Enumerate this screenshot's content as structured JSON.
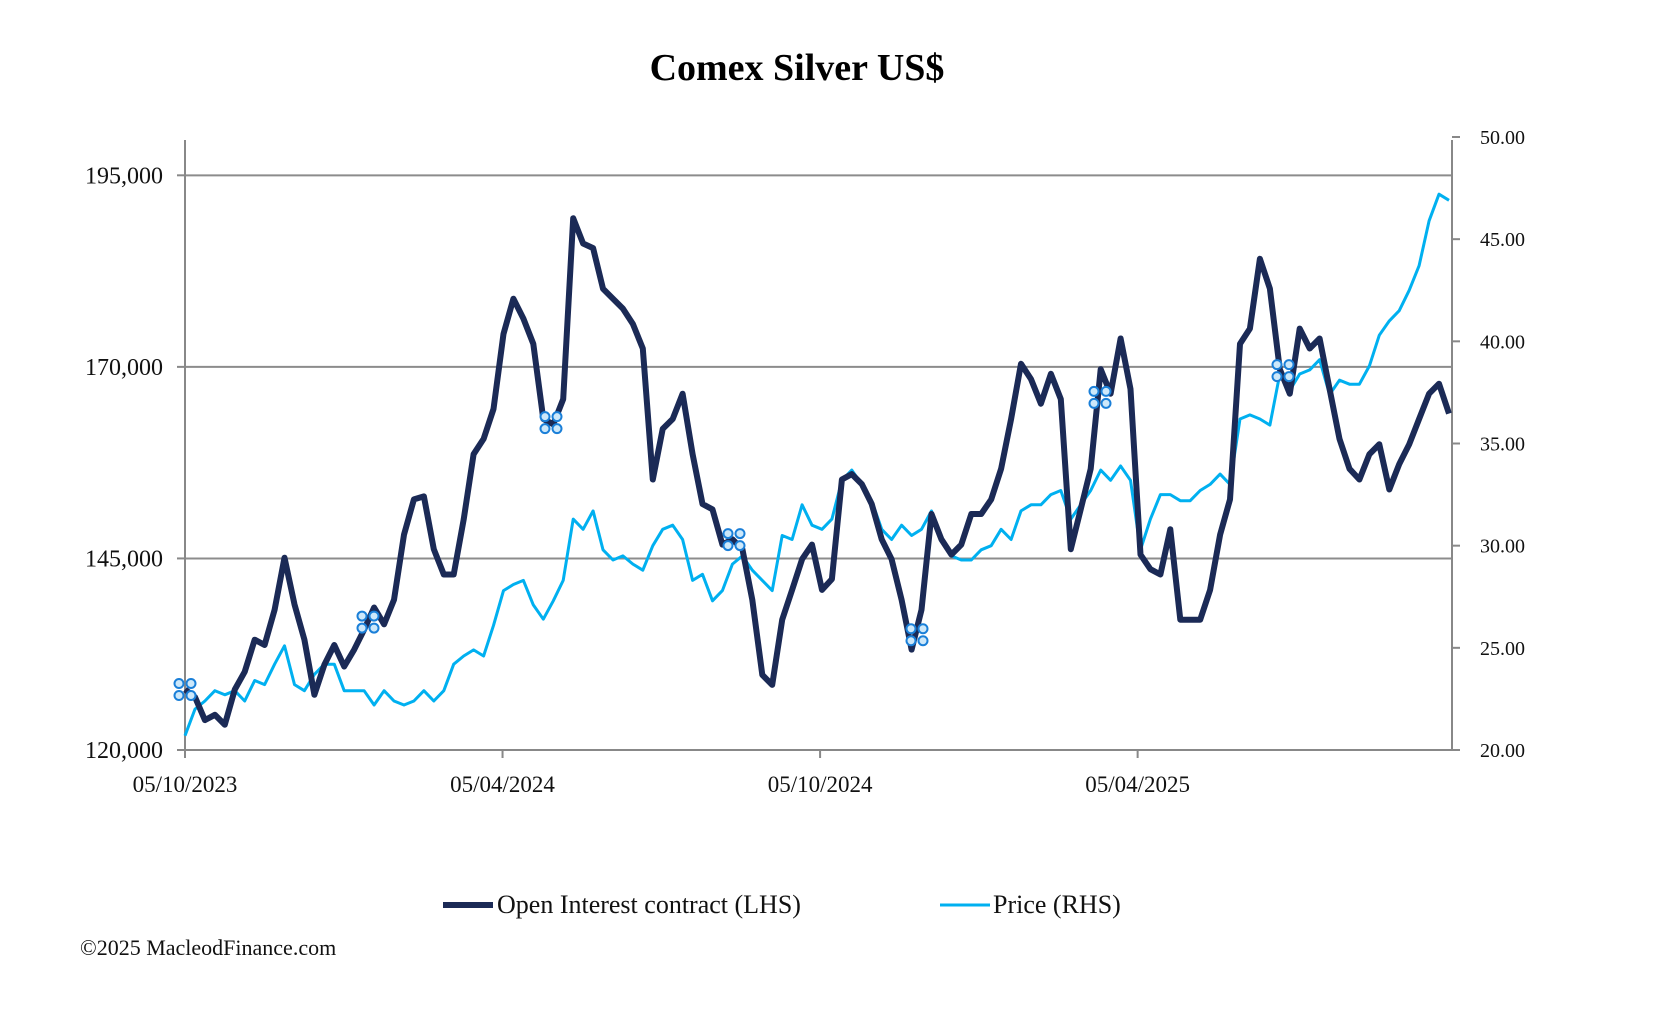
{
  "chart_data": {
    "type": "line",
    "title": "Comex Silver US$",
    "colors": {
      "open_interest": "#1b2a56",
      "price": "#00b0f0"
    },
    "x_tick_labels": [
      "05/10/2023",
      "05/04/2024",
      "05/10/2024",
      "05/04/2025"
    ],
    "xlim": [
      "05/10/2023",
      "05/10/2025"
    ],
    "y_left": {
      "ticks": [
        "120,000",
        "145,000",
        "170,000",
        "195,000"
      ],
      "ylim": [
        120000,
        200000
      ]
    },
    "y_right": {
      "ticks": [
        "20.00",
        "25.00",
        "30.00",
        "35.00",
        "40.00",
        "45.00",
        "50.00"
      ],
      "ylim": [
        20,
        50
      ]
    },
    "grid": "horizontal, left-axis major ticks",
    "legend_position": "bottom",
    "series": [
      {
        "name": "Open Interest contract (LHS)",
        "axis": "left",
        "values": [
          127900,
          126900,
          123900,
          124600,
          123300,
          127900,
          130200,
          134400,
          133700,
          138300,
          145100,
          139000,
          134400,
          127200,
          131100,
          133700,
          130900,
          133100,
          135700,
          138600,
          136400,
          139600,
          148100,
          152700,
          153100,
          146200,
          142900,
          142900,
          150100,
          158600,
          160600,
          164500,
          174300,
          178900,
          176300,
          173000,
          163200,
          162500,
          165800,
          189400,
          186100,
          185500,
          180200,
          178900,
          177600,
          175600,
          172400,
          155300,
          161900,
          163200,
          166500,
          158600,
          152100,
          151400,
          146800,
          147500,
          146200,
          139600,
          129800,
          128500,
          137000,
          140900,
          144900,
          146800,
          140900,
          142300,
          155300,
          156000,
          154700,
          152100,
          147500,
          144900,
          139600,
          133100,
          138300,
          150800,
          147500,
          145500,
          146800,
          150800,
          150800,
          152700,
          156700,
          163200,
          170400,
          168400,
          165200,
          169100,
          165800,
          146200,
          151400,
          156700,
          169700,
          166500,
          173700,
          167100,
          145500,
          143600,
          142900,
          148800,
          137000,
          137000,
          137000,
          140900,
          148100,
          152700,
          173000,
          175000,
          184100,
          180200,
          169700,
          166500,
          175000,
          172400,
          173700,
          167100,
          160600,
          156700,
          155300,
          158600,
          159900,
          154000,
          157300,
          159900,
          163200,
          166500,
          167800,
          163900
        ]
      },
      {
        "name": "Price (RHS)",
        "axis": "right",
        "values": [
          20.7,
          22.0,
          22.4,
          22.9,
          22.7,
          22.9,
          22.4,
          23.4,
          23.2,
          24.2,
          25.1,
          23.2,
          22.9,
          23.7,
          24.2,
          24.2,
          22.9,
          22.9,
          22.9,
          22.2,
          22.9,
          22.4,
          22.2,
          22.4,
          22.9,
          22.4,
          22.9,
          24.2,
          24.6,
          24.9,
          24.6,
          26.1,
          27.8,
          28.1,
          28.3,
          27.1,
          26.4,
          27.3,
          28.3,
          31.3,
          30.8,
          31.7,
          29.8,
          29.3,
          29.5,
          29.1,
          28.8,
          30.0,
          30.8,
          31.0,
          30.3,
          28.3,
          28.6,
          27.3,
          27.8,
          29.1,
          29.5,
          28.8,
          28.3,
          27.8,
          30.5,
          30.3,
          32.0,
          31.0,
          30.8,
          31.3,
          33.2,
          33.7,
          33.0,
          32.2,
          30.8,
          30.3,
          31.0,
          30.5,
          30.8,
          31.7,
          30.3,
          29.5,
          29.3,
          29.3,
          29.8,
          30.0,
          30.8,
          30.3,
          31.7,
          32.0,
          32.0,
          32.5,
          32.7,
          31.3,
          32.0,
          32.7,
          33.7,
          33.2,
          33.9,
          33.2,
          29.8,
          31.3,
          32.5,
          32.5,
          32.2,
          32.2,
          32.7,
          33.0,
          33.5,
          33.0,
          36.2,
          36.4,
          36.2,
          35.9,
          38.4,
          37.6,
          38.4,
          38.6,
          39.1,
          37.4,
          38.1,
          37.9,
          37.9,
          38.8,
          40.3,
          41.0,
          41.5,
          42.5,
          43.7,
          45.9,
          47.2,
          46.9
        ]
      }
    ]
  },
  "footer": {
    "copyright": "©2025 MacleodFinance.com"
  }
}
